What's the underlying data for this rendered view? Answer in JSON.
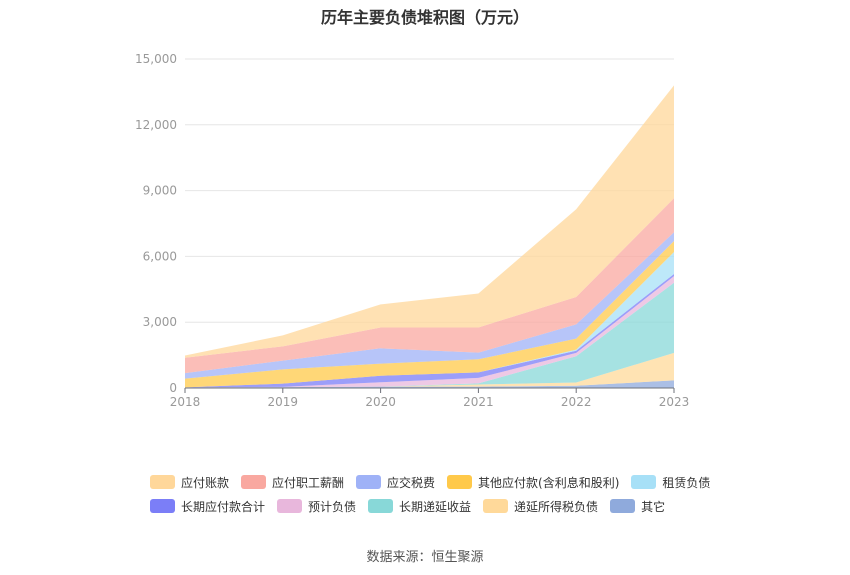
{
  "chart_data": {
    "type": "area",
    "stacked": true,
    "title": "历年主要负债堆积图（万元）",
    "x": [
      "2018",
      "2019",
      "2020",
      "2021",
      "2022",
      "2023"
    ],
    "ylim": [
      0,
      15000
    ],
    "yticks": [
      "0",
      "3,000",
      "6,000",
      "9,000",
      "12,000",
      "15,000"
    ],
    "grid": true,
    "legend_position": "bottom",
    "series": [
      {
        "name": "其它",
        "color": "#8faadc",
        "values": [
          30,
          40,
          60,
          60,
          100,
          350
        ]
      },
      {
        "name": "递延所得税负债",
        "color": "#ffd99a",
        "values": [
          0,
          0,
          0,
          100,
          150,
          1250
        ]
      },
      {
        "name": "长期递延收益",
        "color": "#88d8d8",
        "values": [
          0,
          0,
          0,
          50,
          1200,
          3200
        ]
      },
      {
        "name": "预计负债",
        "color": "#e8b7dc",
        "values": [
          0,
          10,
          200,
          250,
          150,
          300
        ]
      },
      {
        "name": "长期应付款合计",
        "color": "#7b7ef7",
        "values": [
          0,
          150,
          300,
          250,
          100,
          100
        ]
      },
      {
        "name": "租赁负债",
        "color": "#a7e0f7",
        "values": [
          0,
          0,
          0,
          0,
          50,
          1000
        ]
      },
      {
        "name": "其他应付款(含利息和股利)",
        "color": "#ffc94a",
        "values": [
          400,
          650,
          550,
          600,
          500,
          500
        ]
      },
      {
        "name": "应交税费",
        "color": "#9fb2f7",
        "values": [
          250,
          400,
          700,
          300,
          650,
          400
        ]
      },
      {
        "name": "应付职工薪酬",
        "color": "#f9a8a0",
        "values": [
          700,
          650,
          950,
          1150,
          1250,
          1550
        ]
      },
      {
        "name": "应付账款",
        "color": "#ffd79a",
        "values": [
          100,
          500,
          1050,
          1550,
          4000,
          5150
        ]
      }
    ],
    "legend_order": [
      [
        "应付账款",
        "应付职工薪酬",
        "应交税费",
        "其他应付款(含利息和股利)",
        "租赁负债"
      ],
      [
        "长期应付款合计",
        "预计负债",
        "长期递延收益",
        "递延所得税负债",
        "其它"
      ]
    ],
    "source": "数据来源：恒生聚源"
  }
}
